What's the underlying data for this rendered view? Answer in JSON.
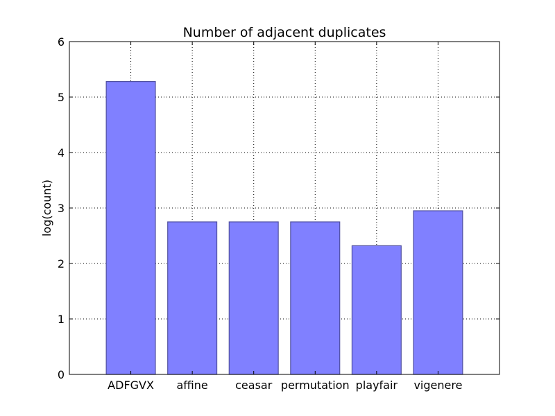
{
  "chart_data": {
    "type": "bar",
    "title": "Number of adjacent duplicates",
    "xlabel": "",
    "ylabel": "log(count)",
    "categories": [
      "ADFGVX",
      "affine",
      "ceasar",
      "permutation",
      "playfair",
      "vigenere"
    ],
    "values": [
      5.28,
      2.75,
      2.75,
      2.75,
      2.32,
      2.95
    ],
    "ylim": [
      0,
      6
    ],
    "yticks": [
      0,
      1,
      2,
      3,
      4,
      5,
      6
    ],
    "grid": true,
    "colors": {
      "bar_fill": "#8080ff",
      "bar_edge": "#5050a0",
      "grid": "#000000",
      "axis": "#000000"
    }
  }
}
